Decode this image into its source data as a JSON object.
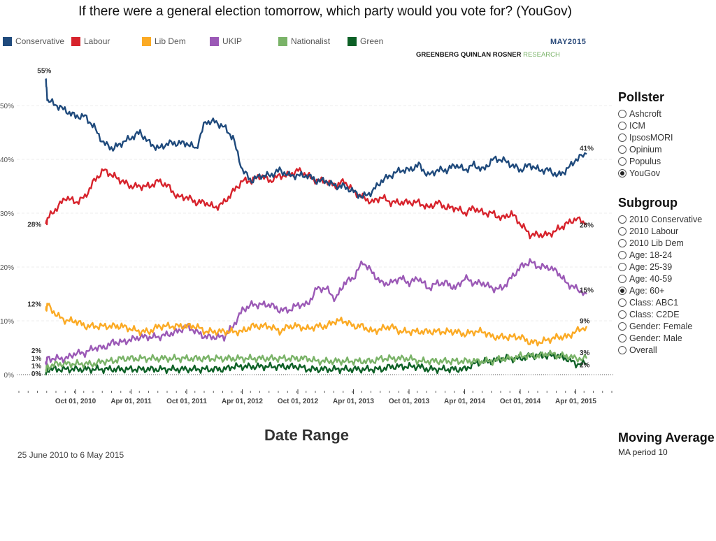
{
  "title": "If there were a general election tomorrow, which party would you vote for? (YouGov)",
  "branding": {
    "date": "MAY2015",
    "name": "GREENBERG QUINLAN ROSNER",
    "name_suffix": "RESEARCH"
  },
  "pollster": {
    "heading": "Pollster",
    "options": [
      {
        "label": "Ashcroft",
        "selected": false
      },
      {
        "label": "ICM",
        "selected": false
      },
      {
        "label": "IpsosMORI",
        "selected": false
      },
      {
        "label": "Opinium",
        "selected": false
      },
      {
        "label": "Populus",
        "selected": false
      },
      {
        "label": "YouGov",
        "selected": true
      }
    ]
  },
  "subgroup": {
    "heading": "Subgroup",
    "options": [
      {
        "label": "2010 Conservative",
        "selected": false
      },
      {
        "label": "2010 Labour",
        "selected": false
      },
      {
        "label": "2010 Lib Dem",
        "selected": false
      },
      {
        "label": "Age: 18-24",
        "selected": false
      },
      {
        "label": "Age: 25-39",
        "selected": false
      },
      {
        "label": "Age: 40-59",
        "selected": false
      },
      {
        "label": "Age: 60+",
        "selected": true
      },
      {
        "label": "Class: ABC1",
        "selected": false
      },
      {
        "label": "Class: C2DE",
        "selected": false
      },
      {
        "label": "Gender: Female",
        "selected": false
      },
      {
        "label": "Gender: Male",
        "selected": false
      },
      {
        "label": "Overall",
        "selected": false
      }
    ]
  },
  "date_range": {
    "heading": "Date Range",
    "value": "25 June 2010 to 6 May 2015"
  },
  "moving_average": {
    "heading": "Moving Average",
    "value": "MA period 10"
  },
  "chart_data": {
    "type": "line",
    "title": "If there were a general election tomorrow, which party would you vote for? (YouGov)",
    "xlabel": "",
    "ylabel": "",
    "ylim": [
      0,
      55
    ],
    "yticks": [
      "0%",
      "10%",
      "20%",
      "30%",
      "40%",
      "50%"
    ],
    "xticks": [
      "Oct 01, 2010",
      "Apr 01, 2011",
      "Oct 01, 2011",
      "Apr 01, 2012",
      "Oct 01, 2012",
      "Apr 01, 2013",
      "Oct 01, 2013",
      "Apr 01, 2014",
      "Oct 01, 2014",
      "Apr 01, 2015"
    ],
    "legend_position": "top",
    "grid": true,
    "x": [
      "2010-06-25",
      "2010-07-01",
      "2010-08-01",
      "2010-09-01",
      "2010-10-01",
      "2010-11-01",
      "2010-12-01",
      "2011-01-01",
      "2011-02-01",
      "2011-03-01",
      "2011-04-01",
      "2011-05-01",
      "2011-06-01",
      "2011-07-01",
      "2011-08-01",
      "2011-09-01",
      "2011-10-01",
      "2011-11-01",
      "2011-12-01",
      "2012-01-01",
      "2012-02-01",
      "2012-03-01",
      "2012-04-01",
      "2012-05-01",
      "2012-06-01",
      "2012-07-01",
      "2012-08-01",
      "2012-09-01",
      "2012-10-01",
      "2012-11-01",
      "2012-12-01",
      "2013-01-01",
      "2013-02-01",
      "2013-03-01",
      "2013-04-01",
      "2013-05-01",
      "2013-06-01",
      "2013-07-01",
      "2013-08-01",
      "2013-09-01",
      "2013-10-01",
      "2013-11-01",
      "2013-12-01",
      "2014-01-01",
      "2014-02-01",
      "2014-03-01",
      "2014-04-01",
      "2014-05-01",
      "2014-06-01",
      "2014-07-01",
      "2014-08-01",
      "2014-09-01",
      "2014-10-01",
      "2014-11-01",
      "2014-12-01",
      "2015-01-01",
      "2015-02-01",
      "2015-03-01",
      "2015-04-01",
      "2015-05-06"
    ],
    "series": [
      {
        "name": "Conservative",
        "color": "#1f4a7c",
        "start_label": "55%",
        "end_label": "41%",
        "values": [
          55,
          51,
          50,
          49,
          48,
          48,
          46,
          43,
          42,
          43,
          44,
          45,
          43,
          42,
          43,
          43,
          43,
          42,
          47,
          47,
          46,
          44,
          38,
          36,
          37,
          37,
          38,
          37,
          37,
          37,
          36,
          36,
          35,
          35,
          34,
          33,
          34,
          36,
          37,
          38,
          38,
          39,
          37,
          38,
          38,
          39,
          38,
          39,
          38,
          40,
          40,
          39,
          38,
          39,
          38,
          38,
          37,
          38,
          40,
          41
        ]
      },
      {
        "name": "Labour",
        "color": "#d7232c",
        "start_label": "28%",
        "end_label": "28%",
        "values": [
          28,
          29,
          31,
          33,
          32,
          33,
          36,
          38,
          37,
          36,
          35,
          35,
          35,
          36,
          35,
          33,
          33,
          32,
          32,
          31,
          32,
          34,
          36,
          36,
          37,
          36,
          37,
          37,
          38,
          37,
          36,
          36,
          35,
          36,
          34,
          33,
          32,
          33,
          32,
          32,
          32,
          32,
          31,
          32,
          31,
          31,
          30,
          31,
          30,
          30,
          29,
          30,
          28,
          26,
          26,
          26,
          27,
          28,
          29,
          28
        ]
      },
      {
        "name": "Lib Dem",
        "color": "#fbaa24",
        "start_label": "12%",
        "end_label": "9%",
        "values": [
          12,
          13,
          11,
          10,
          10,
          9,
          9,
          9,
          9,
          9,
          8.5,
          8,
          8,
          9,
          9,
          9,
          9,
          9,
          8,
          8,
          8,
          8,
          8,
          9,
          9,
          9,
          8,
          9,
          9,
          8.5,
          9,
          9,
          10,
          10,
          9,
          9,
          8,
          8.5,
          9,
          8,
          8,
          8,
          8,
          8,
          8,
          8,
          7.5,
          8,
          8,
          7,
          7,
          7,
          7,
          6,
          6,
          6.5,
          7,
          7,
          8,
          9
        ]
      },
      {
        "name": "UKIP",
        "color": "#9b59b6",
        "start_label": "2%",
        "end_label": "15%",
        "values": [
          2,
          3,
          3,
          3,
          4,
          4,
          5,
          5,
          6,
          6,
          6.5,
          7,
          7,
          7,
          7.5,
          8,
          9,
          8,
          7,
          7,
          7,
          9,
          12,
          13,
          13,
          13,
          12,
          12,
          13,
          13,
          16,
          16,
          14,
          17,
          18,
          21,
          19,
          17,
          17,
          18,
          17,
          18,
          16,
          17,
          17,
          16,
          18,
          17,
          17,
          16,
          16,
          18,
          20,
          21,
          20,
          20,
          19,
          17,
          16,
          15
        ]
      },
      {
        "name": "Nationalist",
        "color": "#7ab368",
        "start_label": "1%",
        "end_label": "3%",
        "values": [
          1,
          1.5,
          2,
          2,
          2,
          2,
          2,
          2.5,
          2.5,
          3,
          3,
          3,
          3,
          3,
          3,
          3,
          3,
          3,
          3,
          3,
          3,
          3,
          3,
          3,
          3,
          3,
          3,
          3,
          3,
          3,
          2.5,
          2.5,
          2.5,
          2.5,
          2.5,
          2.5,
          2.5,
          3,
          3,
          3,
          3,
          2.5,
          2.5,
          2.5,
          2.5,
          2.5,
          2.5,
          2.5,
          2.5,
          2.5,
          3,
          3,
          3.5,
          3.5,
          3.5,
          4,
          3.5,
          3.5,
          3,
          3
        ]
      },
      {
        "name": "Green",
        "color": "#0d6026",
        "start_label": "0%",
        "end_label": "2%",
        "values": [
          0,
          1,
          1,
          1,
          1,
          1,
          1,
          1,
          1,
          1,
          1,
          1,
          1,
          1,
          1,
          1,
          1,
          1,
          1,
          1,
          1,
          1.5,
          1.5,
          1.5,
          1.5,
          1.5,
          1.5,
          1.5,
          1.5,
          1,
          1,
          1,
          1,
          1,
          1,
          1,
          1,
          1,
          1.5,
          1.5,
          1.5,
          1.5,
          1,
          1,
          1,
          1,
          1,
          2,
          2.5,
          2.5,
          3,
          3,
          3,
          3.5,
          3.5,
          3.5,
          3.5,
          3,
          2,
          2
        ]
      }
    ],
    "extra_start_labels": [
      "1%"
    ]
  }
}
